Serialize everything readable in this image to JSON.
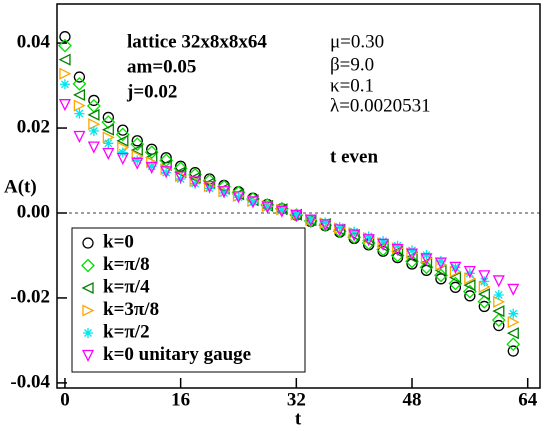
{
  "chart_data": {
    "type": "scatter",
    "annotations": [
      "lattice 32x8x8x64",
      "am=0.05",
      "j=0.02",
      "μ=0.30",
      "β=9.0",
      "κ=0.1",
      "λ=0.0020531",
      "t even"
    ],
    "x_label": "t",
    "y_label": "A(t)",
    "xlim": [
      -1.1,
      65.7
    ],
    "ylim": [
      -0.0412,
      0.0492
    ],
    "xticks": [
      0,
      16,
      32,
      48,
      64
    ],
    "yticks": [
      -0.04,
      -0.02,
      {
        "value": 0,
        "label": "0.00"
      },
      0.02,
      0.04
    ],
    "x": [
      0,
      2,
      4,
      6,
      8,
      10,
      12,
      14,
      16,
      18,
      20,
      22,
      24,
      26,
      28,
      30,
      32,
      34,
      36,
      38,
      40,
      42,
      44,
      46,
      48,
      50,
      52,
      54,
      56,
      58,
      60,
      62
    ],
    "series": [
      {
        "name": "k=0",
        "color": "#000000",
        "marker": "circle",
        "values": [
          0.0415,
          0.032,
          0.0265,
          0.0225,
          0.0195,
          0.017,
          0.015,
          0.013,
          0.011,
          0.0095,
          0.008,
          0.0065,
          0.005,
          0.0035,
          0.002,
          0.001,
          -0.0005,
          -0.002,
          -0.003,
          -0.0045,
          -0.006,
          -0.0075,
          -0.009,
          -0.0105,
          -0.012,
          -0.0135,
          -0.0155,
          -0.0175,
          -0.0195,
          -0.022,
          -0.0265,
          -0.0325
        ]
      },
      {
        "name": "k=π/8",
        "color": "#00e000",
        "marker": "diamond",
        "values": [
          0.0394,
          0.0304,
          0.0252,
          0.0214,
          0.0185,
          0.0162,
          0.0143,
          0.0124,
          0.0105,
          0.009,
          0.0076,
          0.0062,
          0.0048,
          0.0033,
          0.0019,
          0.001,
          -0.0005,
          -0.0019,
          -0.0029,
          -0.0043,
          -0.0057,
          -0.0071,
          -0.0086,
          -0.01,
          -0.0114,
          -0.0128,
          -0.0147,
          -0.0166,
          -0.0185,
          -0.0209,
          -0.0252,
          -0.0309
        ]
      },
      {
        "name": "k=π/4",
        "color": "#008000",
        "marker": "triangle-left",
        "values": [
          0.0361,
          0.0278,
          0.0231,
          0.0196,
          0.017,
          0.0148,
          0.0131,
          0.0113,
          0.0096,
          0.0083,
          0.007,
          0.0057,
          0.0044,
          0.003,
          0.0017,
          0.0009,
          -0.0004,
          -0.0017,
          -0.0026,
          -0.0039,
          -0.0052,
          -0.0065,
          -0.0078,
          -0.0091,
          -0.0104,
          -0.0117,
          -0.0135,
          -0.0152,
          -0.017,
          -0.0191,
          -0.0231,
          -0.0283
        ]
      },
      {
        "name": "k=3π/8",
        "color": "#ffa500",
        "marker": "triangle-right",
        "values": [
          0.0328,
          0.0253,
          0.0209,
          0.0178,
          0.0154,
          0.0134,
          0.0119,
          0.0103,
          0.0087,
          0.0075,
          0.0063,
          0.0051,
          0.004,
          0.0028,
          0.0016,
          0.0008,
          -0.0004,
          -0.0016,
          -0.0024,
          -0.0036,
          -0.0047,
          -0.0059,
          -0.0071,
          -0.0083,
          -0.0095,
          -0.0107,
          -0.0122,
          -0.0138,
          -0.0154,
          -0.0174,
          -0.0209,
          -0.0257
        ]
      },
      {
        "name": "k=π/2",
        "color": "#00e5ee",
        "marker": "star",
        "values": [
          0.0303,
          0.0234,
          0.0193,
          0.0164,
          0.0142,
          0.0124,
          0.011,
          0.0095,
          0.008,
          0.0069,
          0.0058,
          0.0047,
          0.0037,
          0.0026,
          0.0015,
          0.0007,
          -0.0004,
          -0.0015,
          -0.0022,
          -0.0033,
          -0.0044,
          -0.0055,
          -0.0066,
          -0.0077,
          -0.0088,
          -0.0099,
          -0.0113,
          -0.0128,
          -0.0142,
          -0.0161,
          -0.0193,
          -0.0237
        ]
      },
      {
        "name": "k=0 unitary gauge",
        "color": "#ff00ff",
        "marker": "triangle-down",
        "values": [
          0.0255,
          0.018,
          0.0155,
          0.014,
          0.0128,
          0.0117,
          0.0107,
          0.0097,
          0.0085,
          0.0073,
          0.0062,
          0.005,
          0.0038,
          0.0026,
          0.0014,
          0.0004,
          -0.0006,
          -0.0017,
          -0.0028,
          -0.004,
          -0.0052,
          -0.0063,
          -0.0074,
          -0.0086,
          -0.0097,
          -0.0108,
          -0.0118,
          -0.0128,
          -0.0138,
          -0.0148,
          -0.016,
          -0.018
        ]
      }
    ]
  }
}
